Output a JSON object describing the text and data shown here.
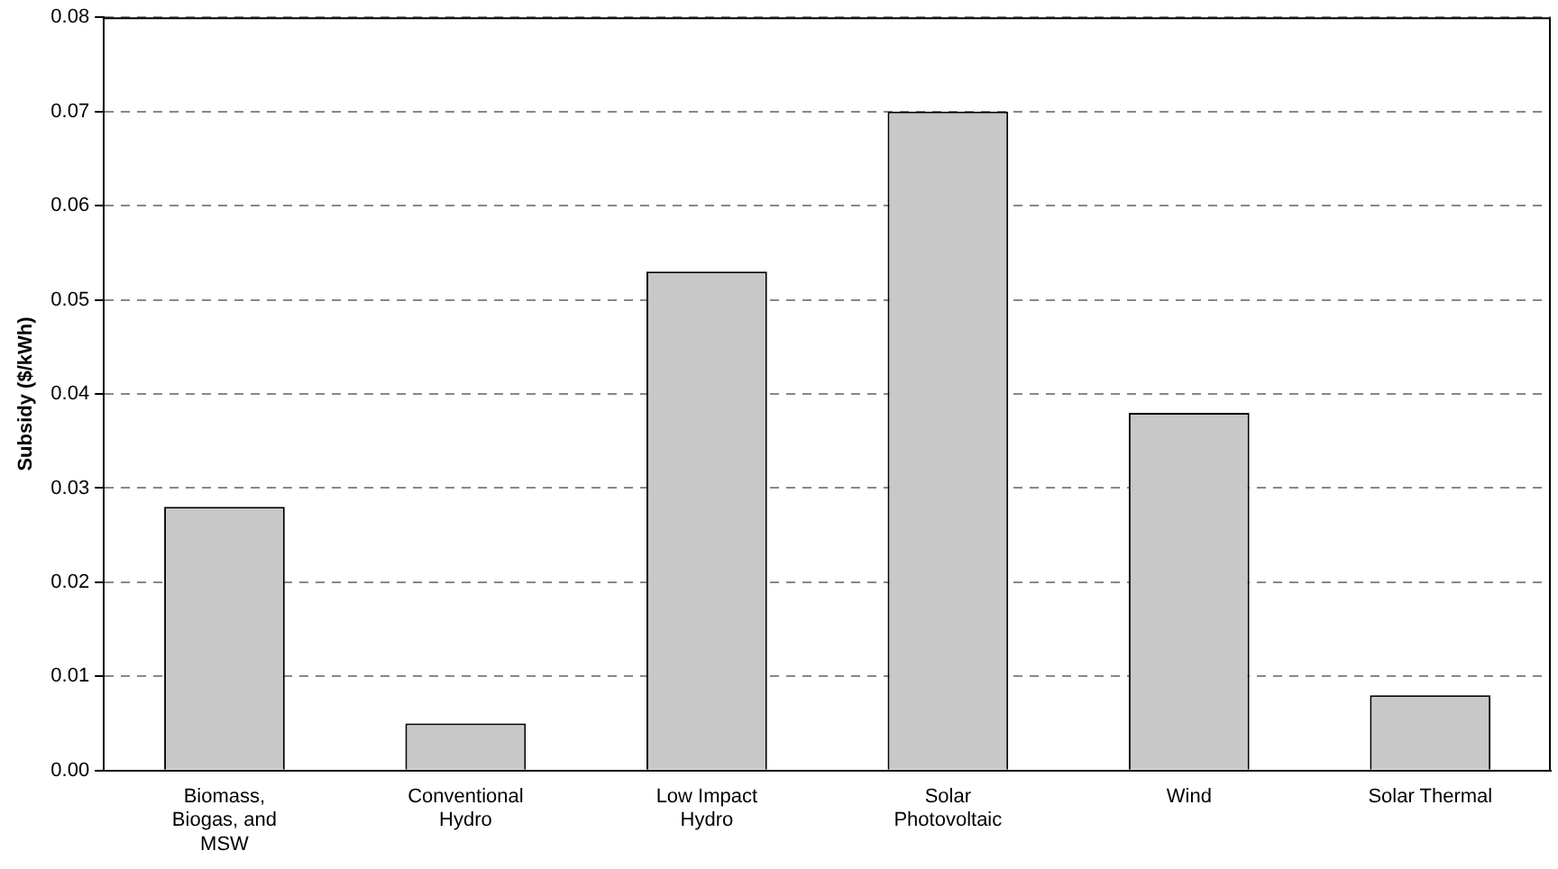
{
  "chart_data": {
    "type": "bar",
    "ylabel": "Subsidy ($/kWh)",
    "categories": [
      "Biomass, Biogas, and MSW",
      "Conventional Hydro",
      "Low Impact Hydro",
      "Solar Photovoltaic",
      "Wind",
      "Solar Thermal"
    ],
    "values": [
      0.028,
      0.005,
      0.053,
      0.07,
      0.038,
      0.008
    ],
    "color": "#c8c8c8",
    "ylim": [
      0,
      0.08
    ],
    "yticks": [
      {
        "value": 0,
        "label": "0.00"
      },
      0.01,
      0.02,
      0.03,
      0.04,
      0.05,
      0.06,
      0.07,
      0.08
    ],
    "grid": "y"
  }
}
